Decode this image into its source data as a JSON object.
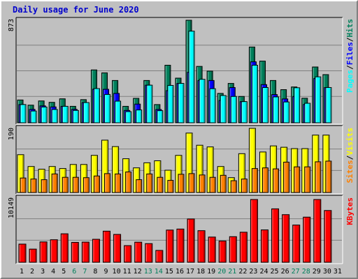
{
  "page": {
    "title": "Daily usage for June 2020"
  },
  "colors": {
    "hits": "#00805c",
    "files": "#0000ff",
    "pages": "#00ffff",
    "visits": "#ffff00",
    "sites": "#ff8000",
    "kbytes": "#ff0000",
    "weekday_label": "#000000",
    "weekend_label": "#00805c"
  },
  "chart_data": [
    {
      "type": "bar",
      "panel": "hits_files_pages",
      "ymax_label": "873",
      "ylim": [
        0,
        873
      ],
      "categories": [
        "1",
        "2",
        "3",
        "4",
        "5",
        "6",
        "7",
        "8",
        "9",
        "10",
        "11",
        "12",
        "13",
        "14",
        "15",
        "16",
        "17",
        "18",
        "19",
        "20",
        "21",
        "22",
        "23",
        "24",
        "25",
        "26",
        "27",
        "28",
        "29",
        "30",
        "31"
      ],
      "legend": [
        {
          "key": "pages",
          "label": "Pages"
        },
        {
          "key": "files",
          "label": "Files"
        },
        {
          "key": "hits",
          "label": "Hits"
        }
      ],
      "series": [
        {
          "name": "Hits",
          "key": "hits",
          "values": [
            194,
            150,
            186,
            174,
            204,
            140,
            197,
            450,
            425,
            360,
            140,
            208,
            360,
            155,
            490,
            380,
            873,
            480,
            440,
            250,
            335,
            224,
            645,
            525,
            360,
            282,
            305,
            209,
            475,
            410,
            null
          ]
        },
        {
          "name": "Files",
          "key": "files",
          "values": [
            155,
            114,
            144,
            135,
            140,
            114,
            172,
            286,
            285,
            250,
            105,
            159,
            320,
            113,
            274,
            335,
            430,
            360,
            360,
            190,
            300,
            180,
            519,
            325,
            240,
            203,
            224,
            156,
            377,
            300,
            null
          ]
        },
        {
          "name": "Pages",
          "key": "pages",
          "values": [
            155,
            100,
            134,
            113,
            140,
            105,
            172,
            291,
            241,
            184,
            95,
            109,
            320,
            103,
            318,
            335,
            780,
            370,
            290,
            232,
            224,
            180,
            490,
            300,
            220,
            177,
            298,
            166,
            391,
            300,
            null
          ]
        }
      ]
    },
    {
      "type": "bar",
      "panel": "visits_sites",
      "ymax_label": "190",
      "ylim": [
        0,
        190
      ],
      "categories": [
        "1",
        "2",
        "3",
        "4",
        "5",
        "6",
        "7",
        "8",
        "9",
        "10",
        "11",
        "12",
        "13",
        "14",
        "15",
        "16",
        "17",
        "18",
        "19",
        "20",
        "21",
        "22",
        "23",
        "24",
        "25",
        "26",
        "27",
        "28",
        "29",
        "30",
        "31"
      ],
      "legend": [
        {
          "key": "sites",
          "label": "Sites"
        },
        {
          "key": "visits",
          "label": "Visits"
        }
      ],
      "series": [
        {
          "name": "Visits",
          "key": "visits",
          "values": [
            112,
            77,
            69,
            77,
            71,
            83,
            83,
            110,
            155,
            136,
            100,
            73,
            88,
            94,
            66,
            110,
            176,
            140,
            135,
            77,
            44,
            115,
            190,
            120,
            138,
            134,
            130,
            130,
            170,
            170,
            null
          ]
        },
        {
          "name": "Sites",
          "key": "sites",
          "values": [
            43,
            40,
            38,
            55,
            45,
            45,
            44,
            49,
            56,
            55,
            61,
            38,
            55,
            45,
            36,
            54,
            56,
            52,
            45,
            51,
            35,
            40,
            71,
            73,
            70,
            90,
            76,
            76,
            91,
            93,
            null
          ]
        }
      ]
    },
    {
      "type": "bar",
      "panel": "kbytes",
      "ymax_label": "10149",
      "ylim": [
        0,
        10149
      ],
      "categories": [
        "1",
        "2",
        "3",
        "4",
        "5",
        "6",
        "7",
        "8",
        "9",
        "10",
        "11",
        "12",
        "13",
        "14",
        "15",
        "16",
        "17",
        "18",
        "19",
        "20",
        "21",
        "22",
        "23",
        "24",
        "25",
        "26",
        "27",
        "28",
        "29",
        "30",
        "31"
      ],
      "xtick_weekend": [
        false,
        false,
        false,
        false,
        false,
        true,
        true,
        false,
        false,
        false,
        false,
        false,
        true,
        true,
        false,
        false,
        false,
        false,
        false,
        true,
        true,
        false,
        false,
        false,
        false,
        false,
        true,
        true,
        false,
        false,
        false
      ],
      "legend": [
        {
          "key": "kbytes",
          "label": "KBytes"
        }
      ],
      "series": [
        {
          "name": "KBytes",
          "key": "kbytes",
          "values": [
            2936,
            2130,
            3293,
            3645,
            4606,
            3216,
            3260,
            3717,
            5032,
            4504,
            2694,
            3250,
            3018,
            1917,
            5210,
            5373,
            7000,
            5110,
            4077,
            3433,
            4140,
            4859,
            10149,
            5234,
            8640,
            7700,
            6020,
            7300,
            10149,
            8370,
            null
          ]
        }
      ]
    }
  ]
}
